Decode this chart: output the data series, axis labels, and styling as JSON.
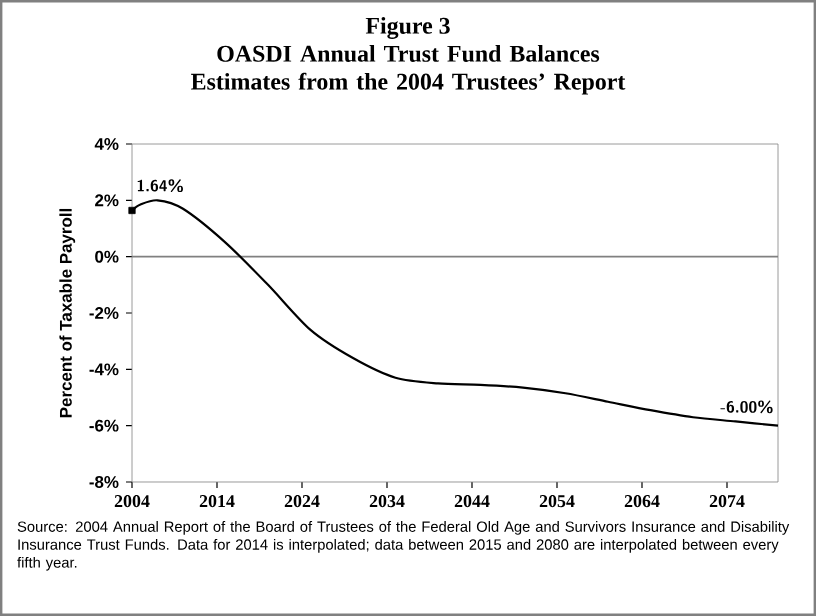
{
  "chart_data": {
    "type": "line",
    "title": "Figure 3",
    "subtitle": "OASDI Annual Trust Fund Balances Estimates from the 2004 Trustees’ Report",
    "ylabel": "Percent of Taxable Payroll",
    "xlim": [
      2004,
      2080
    ],
    "xticks": [
      2004,
      2014,
      2024,
      2034,
      2044,
      2054,
      2064,
      2074
    ],
    "ylim": [
      -8,
      4
    ],
    "yticks": [
      {
        "value": -8,
        "label": "-8%"
      },
      {
        "value": -6,
        "label": "-6%"
      },
      {
        "value": -4,
        "label": "-4%"
      },
      {
        "value": -2,
        "label": "-2%"
      },
      {
        "value": 0,
        "label": "0%"
      },
      {
        "value": 2,
        "label": "2%"
      },
      {
        "value": 4,
        "label": "4%"
      }
    ],
    "grid": false,
    "series": [
      {
        "color": "#000000",
        "marker": "none",
        "x": [
          2004,
          2005,
          2007,
          2010,
          2015,
          2020,
          2025,
          2030,
          2035,
          2040,
          2045,
          2050,
          2055,
          2060,
          2065,
          2070,
          2075,
          2080
        ],
        "values": [
          1.64,
          1.85,
          2.0,
          1.7,
          0.5,
          -1.0,
          -2.6,
          -3.6,
          -4.3,
          -4.5,
          -4.55,
          -4.65,
          -4.85,
          -5.15,
          -5.45,
          -5.7,
          -5.85,
          -6.0
        ]
      },
      {
        "type": "scatter",
        "color": "#000000",
        "marker": "square",
        "x": [
          2004
        ],
        "values": [
          1.64
        ]
      }
    ],
    "ref_lines": [
      {
        "axis": "y",
        "value": 0,
        "color": "#808080"
      }
    ],
    "annotations": [
      {
        "text": "1.64%",
        "x": 2004,
        "y": 1.64
      },
      {
        "text": "-6.00%",
        "x": 2080,
        "y": -6.0
      },
      "Source: 2004 Annual Report of the Board of Trustees of the Federal Old Age and Survivors Insurance and Disability Insurance Trust Funds. Data for 2014 is interpolated; data between 2015 and 2080 are interpolated between every fifth year."
    ]
  }
}
